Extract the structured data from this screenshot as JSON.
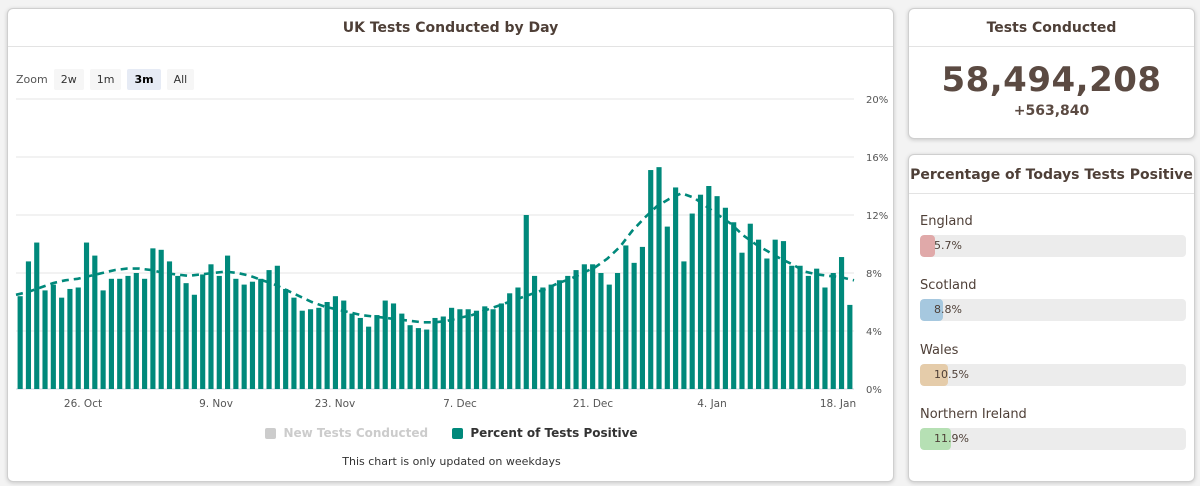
{
  "chart_panel": {
    "title": "UK Tests Conducted by Day",
    "caption": "This chart is only updated on weekdays",
    "zoom": {
      "label": "Zoom",
      "buttons": [
        "2w",
        "1m",
        "3m",
        "All"
      ],
      "active": "3m"
    },
    "legend": [
      {
        "label": "New Tests Conducted",
        "color": "#cccccc",
        "enabled": false
      },
      {
        "label": "Percent of Tests Positive",
        "color": "#00897b",
        "enabled": true
      }
    ]
  },
  "chart_data": {
    "type": "bar",
    "title": "UK Tests Conducted by Day",
    "series": [
      {
        "name": "Percent of Tests Positive",
        "type": "bar",
        "color": "#00897b",
        "values": [
          6.4,
          8.8,
          10.1,
          6.8,
          7.2,
          6.3,
          6.9,
          7.0,
          10.1,
          9.2,
          6.8,
          7.6,
          7.6,
          7.8,
          8.0,
          7.6,
          9.7,
          9.6,
          8.8,
          7.8,
          7.3,
          6.5,
          7.9,
          8.6,
          7.8,
          9.2,
          7.6,
          7.2,
          7.4,
          7.6,
          8.2,
          8.5,
          6.9,
          6.3,
          5.4,
          5.5,
          5.6,
          6.0,
          6.4,
          6.1,
          5.2,
          4.9,
          4.3,
          5.1,
          6.1,
          5.9,
          5.2,
          4.4,
          4.2,
          4.1,
          4.9,
          5.0,
          5.6,
          5.5,
          5.5,
          5.4,
          5.7,
          5.5,
          5.9,
          6.6,
          7.0,
          12.0,
          7.8,
          7.0,
          7.2,
          7.5,
          7.8,
          8.2,
          8.6,
          8.6,
          8.0,
          7.2,
          8.0,
          9.9,
          8.7,
          9.8,
          15.1,
          15.3,
          11.2,
          13.9,
          8.8,
          12.1,
          13.4,
          14.0,
          13.3,
          12.5,
          11.5,
          9.4,
          11.4,
          10.3,
          9.0,
          10.3,
          10.2,
          8.5,
          8.5,
          7.8,
          8.3,
          7.0,
          8.0,
          9.1,
          5.8
        ]
      },
      {
        "name": "7-day average",
        "type": "line",
        "style": "dashed",
        "color": "#00897b",
        "values": [
          6.5,
          6.7,
          7.0,
          7.3,
          7.5,
          7.6,
          7.8,
          8.0,
          8.2,
          8.3,
          8.3,
          8.2,
          8.0,
          7.9,
          7.8,
          7.9,
          8.0,
          8.1,
          8.0,
          7.8,
          7.5,
          7.2,
          6.8,
          6.4,
          6.0,
          5.7,
          5.5,
          5.3,
          5.1,
          5.0,
          4.9,
          4.8,
          4.7,
          4.6,
          4.6,
          4.7,
          4.9,
          5.1,
          5.4,
          5.7,
          6.0,
          6.3,
          6.6,
          6.9,
          7.3,
          7.6,
          8.0,
          8.4,
          9.0,
          9.8,
          10.9,
          11.8,
          12.6,
          13.1,
          13.5,
          13.2,
          12.6,
          12.0,
          11.4,
          10.6,
          10.0,
          9.5,
          9.0,
          8.6,
          8.1,
          7.9,
          7.8,
          7.7,
          7.5
        ]
      }
    ],
    "x_tick_labels": [
      "26. Oct",
      "9. Nov",
      "23. Nov",
      "7. Dec",
      "21. Dec",
      "4. Jan",
      "18. Jan"
    ],
    "y_tick_labels": [
      "0%",
      "4%",
      "8%",
      "12%",
      "16%",
      "20%"
    ],
    "ylim": [
      0,
      20
    ],
    "yaxis_side": "right",
    "grid": true
  },
  "tests_panel": {
    "title": "Tests Conducted",
    "total": "58,494,208",
    "delta": "+563,840"
  },
  "pct_panel": {
    "title": "Percentage of Todays Tests Positive",
    "countries": [
      {
        "name": "England",
        "value_label": "5.7%",
        "value": 5.7,
        "color": "#e0a9a9"
      },
      {
        "name": "Scotland",
        "value_label": "8.8%",
        "value": 8.8,
        "color": "#a6c8df"
      },
      {
        "name": "Wales",
        "value_label": "10.5%",
        "value": 10.5,
        "color": "#e5ccaa"
      },
      {
        "name": "Northern Ireland",
        "value_label": "11.9%",
        "value": 11.9,
        "color": "#b6e0b4"
      }
    ]
  }
}
